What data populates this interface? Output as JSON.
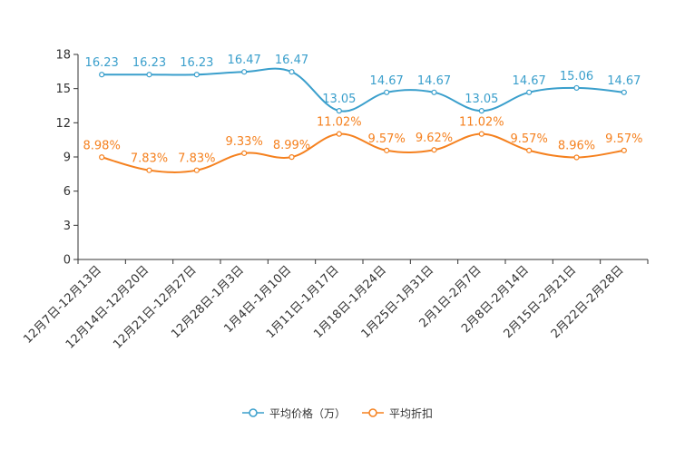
{
  "chart_data": {
    "type": "line",
    "categories": [
      "12月7日-12月13日",
      "12月14日-12月20日",
      "12月21日-12月27日",
      "12月28日-1月3日",
      "1月4日-1月10日",
      "1月11日-1月17日",
      "1月18日-1月24日",
      "1月25日-1月31日",
      "2月1日-2月7日",
      "2月8日-2月14日",
      "2月15日-2月21日",
      "2月22日-2月28日"
    ],
    "ylim": [
      0,
      18
    ],
    "yticks": [
      0,
      3,
      6,
      9,
      12,
      15,
      18
    ],
    "series": [
      {
        "name": "平均价格（万）",
        "color": "#3a9fcc",
        "values": [
          16.23,
          16.23,
          16.23,
          16.47,
          16.47,
          13.05,
          14.67,
          14.67,
          13.05,
          14.67,
          15.06,
          14.67
        ],
        "labels": [
          "16.23",
          "16.23",
          "16.23",
          "16.47",
          "16.47",
          "13.05",
          "14.67",
          "14.67",
          "13.05",
          "14.67",
          "15.06",
          "14.67"
        ]
      },
      {
        "name": "平均折扣",
        "color": "#f5811f",
        "values": [
          8.98,
          7.83,
          7.83,
          9.33,
          8.99,
          11.02,
          9.57,
          9.62,
          11.02,
          9.57,
          8.96,
          9.57
        ],
        "labels": [
          "8.98%",
          "7.83%",
          "7.83%",
          "9.33%",
          "8.99%",
          "11.02%",
          "9.57%",
          "9.62%",
          "11.02%",
          "9.57%",
          "8.96%",
          "9.57%"
        ]
      }
    ],
    "legend": {
      "position": "bottom-center"
    }
  }
}
